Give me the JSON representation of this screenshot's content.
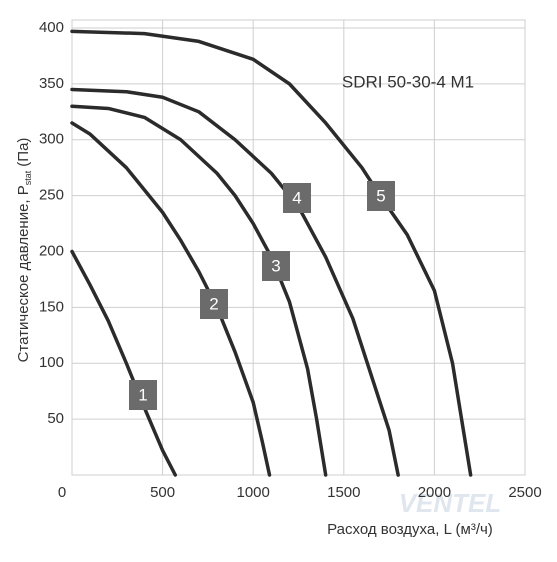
{
  "chart_data": {
    "type": "line",
    "annotation": "SDRI 50-30-4 M1",
    "watermark": "VENTEL",
    "y_label": {
      "main": "Статическое давление, P",
      "sub": "stat",
      "unit": "(Па)"
    },
    "x_label": "Расход воздуха, L (м³/ч)",
    "xlim": [
      0,
      2500
    ],
    "ylim": [
      0,
      400
    ],
    "xticks": [
      0,
      500,
      1000,
      1500,
      2000,
      2500
    ],
    "yticks": [
      50,
      100,
      150,
      200,
      250,
      300,
      350,
      400
    ],
    "grid": true,
    "series": [
      {
        "name": "1",
        "color": "#2b2b2b",
        "x": [
          0,
          100,
          200,
          300,
          400,
          500,
          570
        ],
        "values": [
          200,
          170,
          138,
          100,
          60,
          22,
          0
        ]
      },
      {
        "name": "2",
        "color": "#2b2b2b",
        "x": [
          0,
          100,
          200,
          300,
          400,
          500,
          600,
          700,
          800,
          900,
          1000,
          1050,
          1090
        ],
        "values": [
          315,
          305,
          290,
          275,
          255,
          235,
          210,
          182,
          150,
          110,
          65,
          30,
          0
        ]
      },
      {
        "name": "3",
        "color": "#2b2b2b",
        "x": [
          0,
          200,
          400,
          600,
          800,
          900,
          1000,
          1100,
          1200,
          1300,
          1350,
          1400
        ],
        "values": [
          330,
          328,
          320,
          300,
          270,
          250,
          225,
          195,
          155,
          95,
          50,
          0
        ]
      },
      {
        "name": "4",
        "color": "#2b2b2b",
        "x": [
          0,
          300,
          500,
          700,
          900,
          1100,
          1250,
          1400,
          1550,
          1650,
          1750,
          1800
        ],
        "values": [
          345,
          343,
          338,
          325,
          300,
          270,
          240,
          195,
          140,
          90,
          40,
          0
        ]
      },
      {
        "name": "5",
        "color": "#2b2b2b",
        "x": [
          0,
          400,
          700,
          1000,
          1200,
          1400,
          1600,
          1700,
          1850,
          2000,
          2100,
          2200
        ],
        "values": [
          397,
          395,
          388,
          372,
          350,
          315,
          275,
          250,
          215,
          165,
          100,
          0
        ]
      }
    ]
  }
}
